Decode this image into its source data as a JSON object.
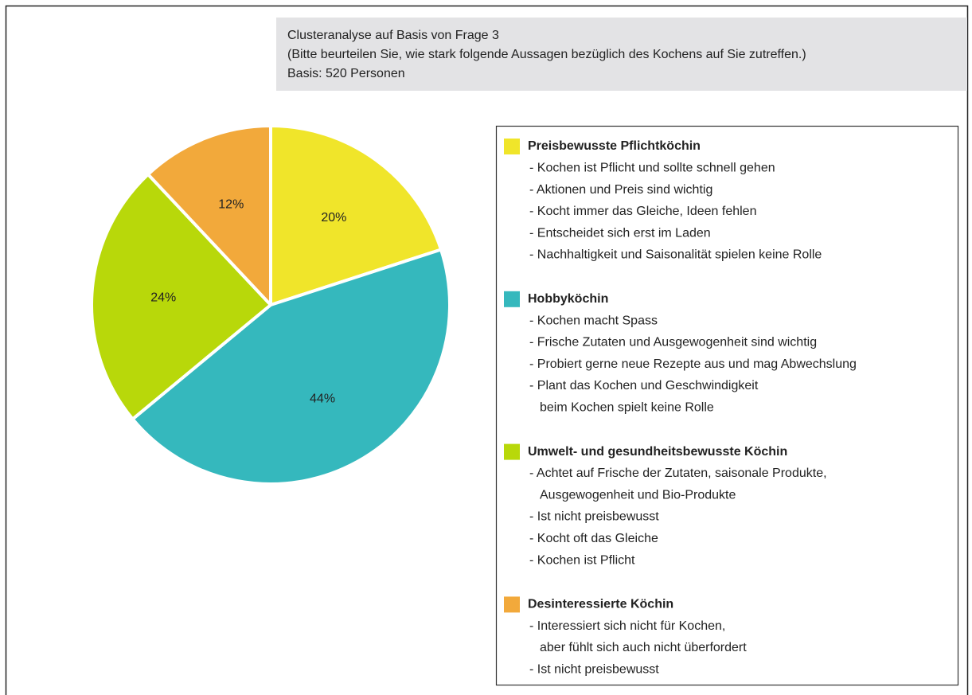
{
  "chart_data": {
    "type": "pie",
    "title_lines": [
      "Clusteranalyse auf Basis von Frage 3",
      "(Bitte beurteilen Sie, wie stark folgende Aussagen bezüglich des Kochens auf Sie zutreffen.)",
      "Basis: 520 Personen"
    ],
    "categories": [
      "Preisbewusste Pflichtköchin",
      "Hobbyköchin",
      "Umwelt- und gesundheitsbewusste Köchin",
      "Desinteressierte Köchin"
    ],
    "values": [
      20,
      44,
      24,
      12
    ],
    "value_labels": [
      "20%",
      "44%",
      "24%",
      "12%"
    ],
    "colors": [
      "#f0e52a",
      "#35b8bd",
      "#b8d80a",
      "#f2a93b"
    ],
    "descriptions": [
      [
        [
          "- Kochen ist Pflicht und sollte schnell gehen"
        ],
        [
          "- Aktionen und Preis sind wichtig"
        ],
        [
          "- Kocht immer das Gleiche, Ideen fehlen"
        ],
        [
          "- Entscheidet sich erst im Laden"
        ],
        [
          "- Nachhaltigkeit und Saisonalität spielen keine Rolle"
        ]
      ],
      [
        [
          "- Kochen macht Spass"
        ],
        [
          "- Frische Zutaten und Ausgewogenheit sind wichtig"
        ],
        [
          "- Probiert gerne neue Rezepte aus und mag Abwechslung"
        ],
        [
          "- Plant das Kochen und Geschwindigkeit",
          "beim Kochen spielt keine Rolle"
        ]
      ],
      [
        [
          "- Achtet auf Frische der Zutaten, saisonale Produkte,",
          "Ausgewogenheit und Bio-Produkte"
        ],
        [
          "- Ist nicht preisbewusst"
        ],
        [
          "- Kocht oft das Gleiche"
        ],
        [
          "- Kochen ist Pflicht"
        ]
      ],
      [
        [
          "- Interessiert sich nicht für Kochen,",
          "aber fühlt sich auch nicht überfordert"
        ],
        [
          "- Ist nicht preisbewusst"
        ]
      ]
    ]
  }
}
